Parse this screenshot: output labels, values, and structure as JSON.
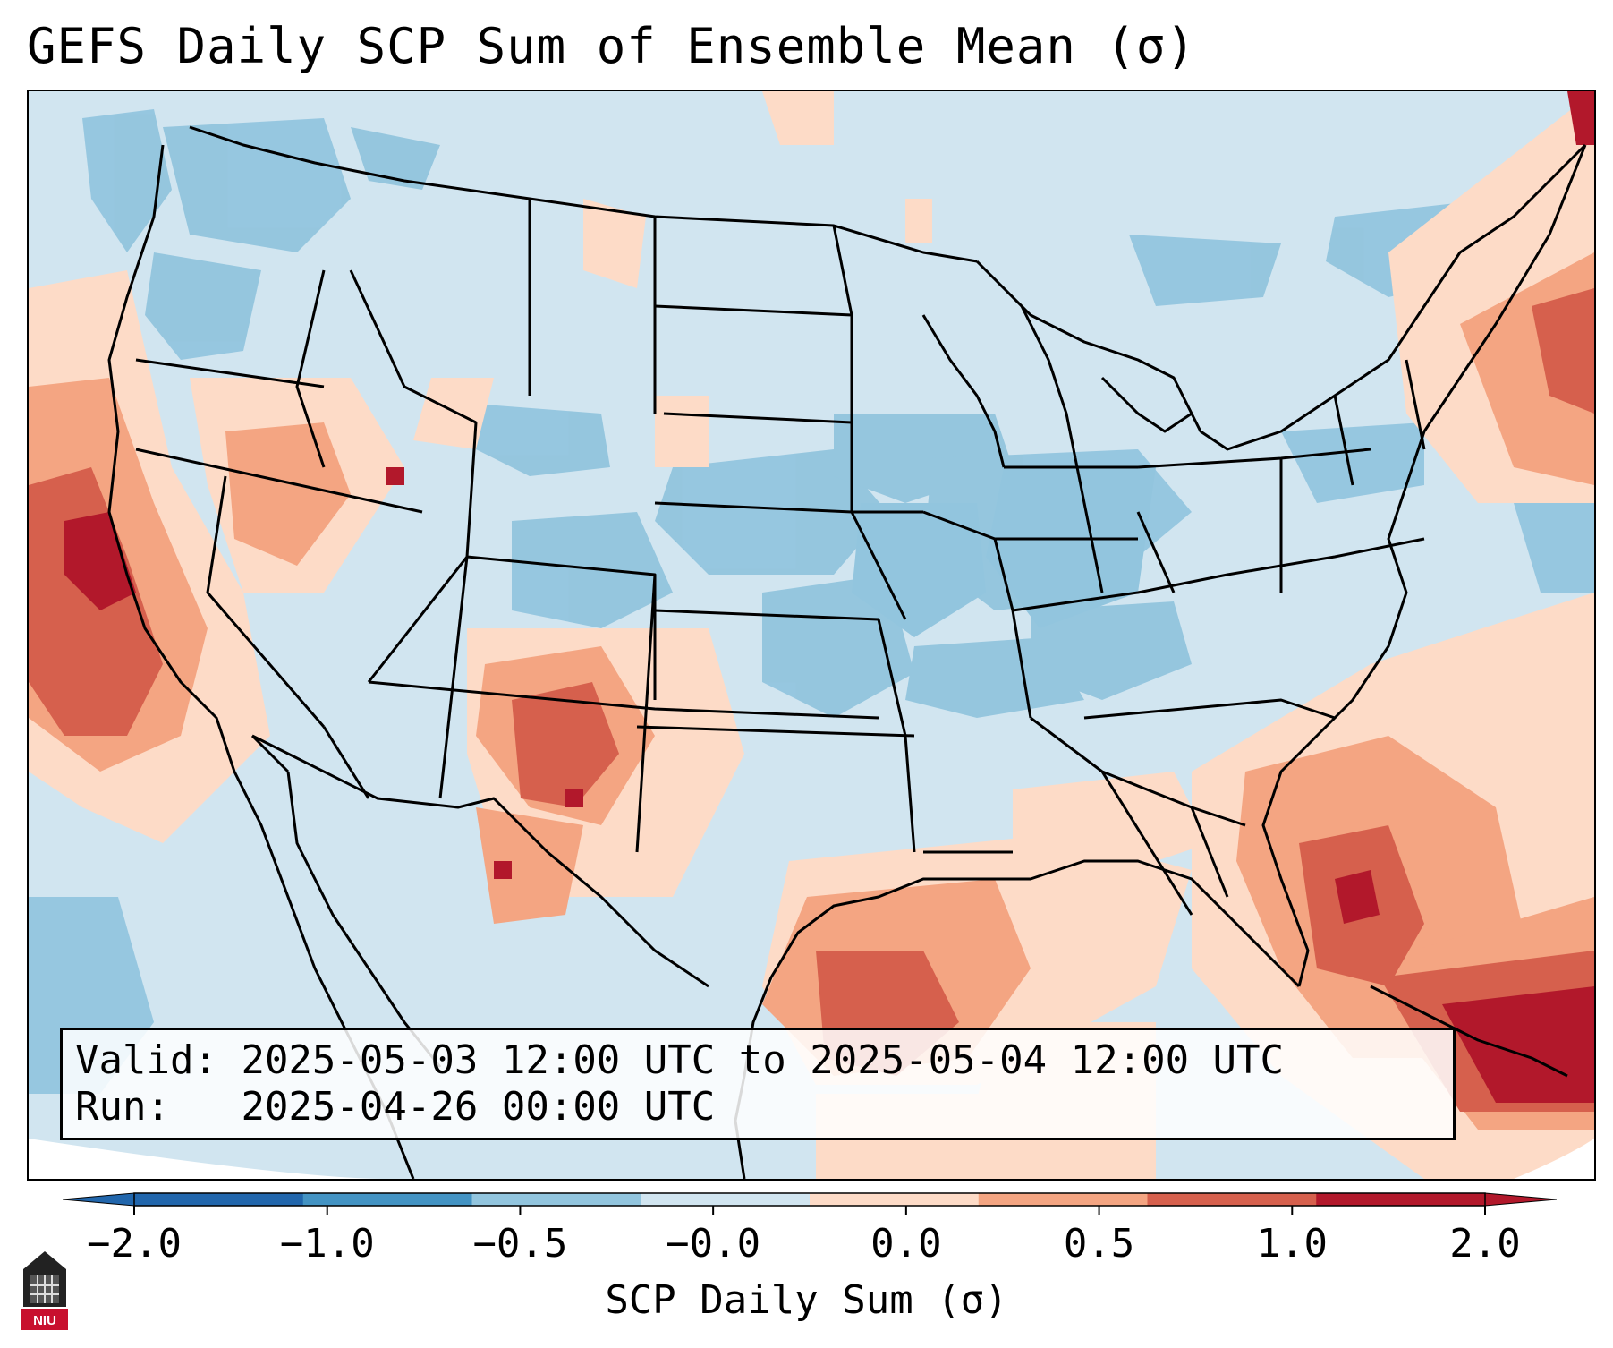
{
  "title": "GEFS Daily SCP Sum of Ensemble Mean (σ)",
  "info": {
    "valid_label": "Valid:",
    "valid_value": "2025-05-03 12:00 UTC to 2025-05-04 12:00 UTC",
    "run_label": "Run:",
    "run_value": "2025-04-26 00:00 UTC"
  },
  "colorbar": {
    "label": "SCP Daily Sum (σ)",
    "ticks": [
      "−2.0",
      "−1.0",
      "−0.5",
      "−0.0",
      "0.0",
      "0.5",
      "1.0",
      "2.0"
    ],
    "colors": [
      "#2166ac",
      "#4393c3",
      "#92c5de",
      "#d1e5f0",
      "#fddbc7",
      "#f4a582",
      "#d6604d",
      "#b2182b"
    ],
    "extend": "both"
  },
  "logo": {
    "text": "NIU",
    "icon": "niu-university-logo"
  }
}
